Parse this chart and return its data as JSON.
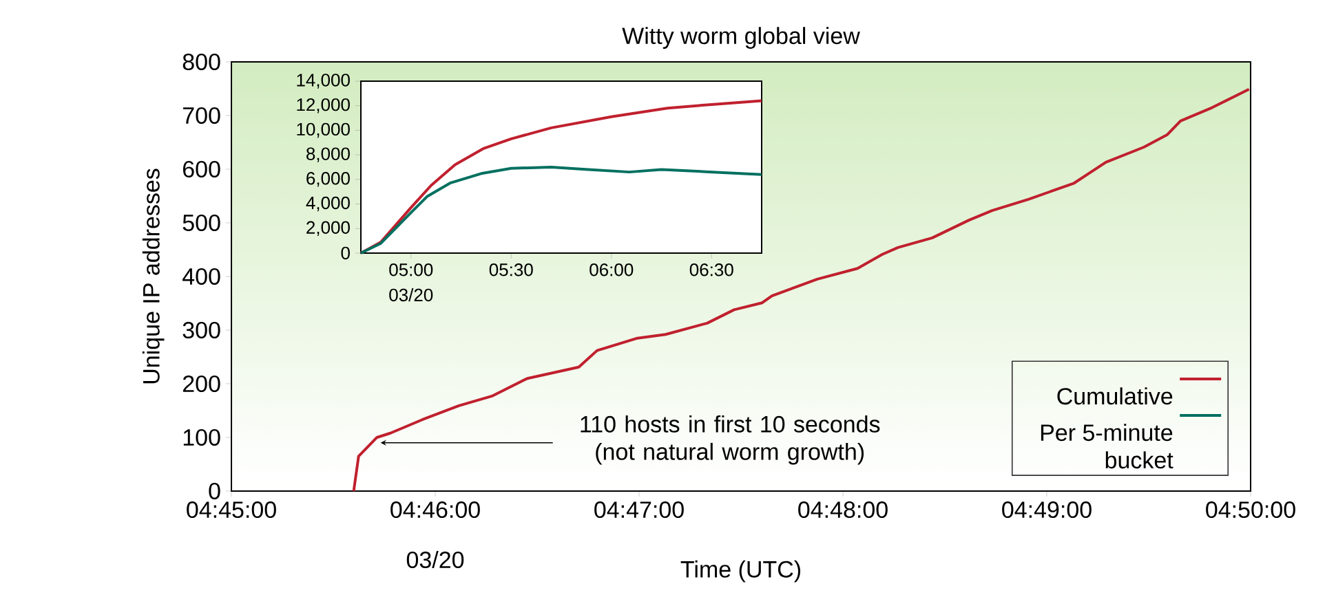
{
  "chart_data": [
    {
      "type": "line",
      "title": "Witty worm global view",
      "xlabel": "Time (UTC)",
      "ylabel": "Unique IP addresses",
      "xlim": [
        4.75,
        4.8333333
      ],
      "xticks": [
        {
          "value": 4.75,
          "label": "04:45:00"
        },
        {
          "value": 4.7666667,
          "label": "04:46:00"
        },
        {
          "value": 4.7833333,
          "label": "04:47:00"
        },
        {
          "value": 4.8,
          "label": "04:48:00"
        },
        {
          "value": 4.8166667,
          "label": "04:49:00"
        },
        {
          "value": 4.8333333,
          "label": "04:50:00"
        }
      ],
      "ylim": [
        0,
        800
      ],
      "yticks": [
        0,
        100,
        200,
        300,
        400,
        500,
        600,
        700,
        800
      ],
      "series": [
        {
          "color": "#c0202e",
          "x": [
            4.76,
            4.76,
            4.7604,
            4.7619,
            4.763,
            4.7656,
            4.7686,
            4.7713,
            4.7742,
            4.7784,
            4.7799,
            4.7832,
            4.7855,
            4.7889,
            4.7911,
            4.7934,
            4.7942,
            4.7979,
            4.8012,
            4.8032,
            4.8045,
            4.8073,
            4.8103,
            4.8122,
            4.8152,
            4.8189,
            4.8215,
            4.8246,
            4.8265,
            4.8276,
            4.8302,
            4.8332
          ],
          "values": [
            0,
            0,
            65,
            100,
            108,
            133,
            159,
            177,
            210,
            231,
            262,
            285,
            292,
            313,
            338,
            351,
            364,
            395,
            415,
            441,
            454,
            472,
            505,
            523,
            544,
            574,
            613,
            641,
            664,
            690,
            715,
            749
          ]
        }
      ],
      "annotations": [
        {
          "text": "110 hosts in first 10 seconds (not natural worm growth)",
          "x": 4.7622,
          "y": 90
        },
        "03/20"
      ]
    },
    {
      "type": "line",
      "xlim": [
        4.75,
        6.75
      ],
      "xticks": [
        {
          "value": 5.0,
          "label": "05:00"
        },
        {
          "value": 5.5,
          "label": "05:30"
        },
        {
          "value": 6.0,
          "label": "06:00"
        },
        {
          "value": 6.5,
          "label": "06:30"
        }
      ],
      "ylim": [
        0,
        14000
      ],
      "yticks": [
        0,
        {
          "value": 2000,
          "label": "2,000"
        },
        {
          "value": 4000,
          "label": "4,000"
        },
        {
          "value": 6000,
          "label": "6,000"
        },
        {
          "value": 8000,
          "label": "8,000"
        },
        {
          "value": 10000,
          "label": "10,000"
        },
        {
          "value": 12000,
          "label": "12,000"
        },
        {
          "value": 14000,
          "label": "14,000"
        }
      ],
      "series": [
        {
          "name": "Cumulative",
          "color": "#c0202e",
          "x": [
            4.75,
            4.85,
            5.0,
            5.1,
            5.22,
            5.36,
            5.5,
            5.7,
            6.0,
            6.28,
            6.5,
            6.75
          ],
          "values": [
            0,
            900,
            3700,
            5500,
            7200,
            8500,
            9300,
            10200,
            11100,
            11800,
            12100,
            12400
          ]
        },
        {
          "name": "Per 5-minute bucket",
          "color": "#007060",
          "x": [
            4.75,
            4.85,
            5.0,
            5.08,
            5.195,
            5.356,
            5.5,
            5.7,
            5.885,
            6.09,
            6.25,
            6.505,
            6.75
          ],
          "values": [
            0,
            800,
            3300,
            4600,
            5700,
            6500,
            6900,
            7000,
            6800,
            6600,
            6800,
            6600,
            6400
          ]
        }
      ],
      "legend": "bottom right",
      "annotations": [
        "03/20"
      ]
    }
  ]
}
